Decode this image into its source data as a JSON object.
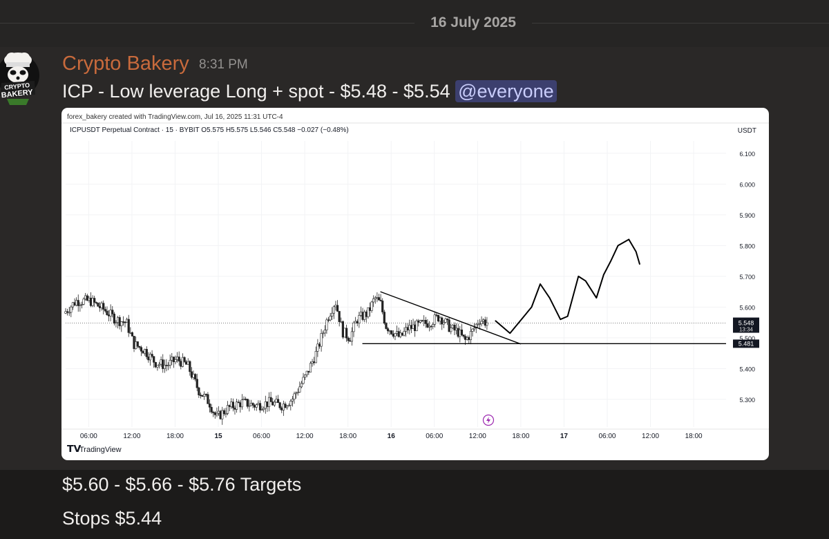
{
  "date_divider": "16 July 2025",
  "message": {
    "username": "Crypto Bakery",
    "timestamp": "8:31 PM",
    "text": "ICP - Low leverage Long + spot - $5.48 - $5.54",
    "mention": "@everyone",
    "avatar_text": [
      "CRYPTO",
      "BAKERY"
    ],
    "followups": [
      "$5.60 - $5.66 - $5.76 Targets",
      "Stops $5.44"
    ]
  },
  "chart": {
    "credit": "forex_bakery created with TradingView.com, Jul 16, 2025 11:31 UTC-4",
    "legend": "ICPUSDT Perpetual Contract · 15 · BYBIT  O5.575  H5.575  L5.546  C5.548  −0.027 (−0.48%)",
    "currency": "USDT",
    "watermark": "TradingView",
    "current_price": "5.548",
    "countdown": "13:34",
    "support_price": "5.481"
  },
  "chart_data": {
    "type": "candlestick",
    "symbol": "ICPUSDT Perpetual Contract",
    "interval": "15",
    "exchange": "BYBIT",
    "ohlc_last": {
      "open": 5.575,
      "high": 5.575,
      "low": 5.546,
      "close": 5.548,
      "change": -0.027,
      "change_pct": -0.48
    },
    "y_ticks": [
      "6.100",
      "6.000",
      "5.900",
      "5.800",
      "5.700",
      "5.600",
      "5.500",
      "5.400",
      "5.300"
    ],
    "ylim": [
      5.21,
      6.14
    ],
    "x_ticks": [
      {
        "label": "06:00",
        "h": 6
      },
      {
        "label": "12:00",
        "h": 12
      },
      {
        "label": "18:00",
        "h": 18
      },
      {
        "label": "15",
        "h": 24,
        "bold": true
      },
      {
        "label": "06:00",
        "h": 30
      },
      {
        "label": "12:00",
        "h": 36
      },
      {
        "label": "18:00",
        "h": 42
      },
      {
        "label": "16",
        "h": 48,
        "bold": true
      },
      {
        "label": "06:00",
        "h": 54
      },
      {
        "label": "12:00",
        "h": 60
      },
      {
        "label": "18:00",
        "h": 66
      },
      {
        "label": "17",
        "h": 72,
        "bold": true
      },
      {
        "label": "06:00",
        "h": 78
      },
      {
        "label": "12:00",
        "h": 84
      },
      {
        "label": "18:00",
        "h": 90
      }
    ],
    "xlim": [
      2.8,
      94.5
    ],
    "current_price": 5.548,
    "support_level": 5.481,
    "price_path": [
      [
        2.8,
        5.58
      ],
      [
        4.5,
        5.62
      ],
      [
        6.5,
        5.62
      ],
      [
        8.5,
        5.59
      ],
      [
        10,
        5.56
      ],
      [
        11.5,
        5.55
      ],
      [
        12.5,
        5.48
      ],
      [
        14,
        5.46
      ],
      [
        15.5,
        5.42
      ],
      [
        17,
        5.41
      ],
      [
        18.5,
        5.43
      ],
      [
        20,
        5.41
      ],
      [
        21.5,
        5.33
      ],
      [
        23,
        5.29
      ],
      [
        24,
        5.24
      ],
      [
        25.5,
        5.27
      ],
      [
        27.5,
        5.29
      ],
      [
        29.5,
        5.28
      ],
      [
        31.5,
        5.29
      ],
      [
        33,
        5.28
      ],
      [
        34.5,
        5.3
      ],
      [
        36.5,
        5.38
      ],
      [
        38,
        5.46
      ],
      [
        39.5,
        5.57
      ],
      [
        40.5,
        5.62
      ],
      [
        41.5,
        5.52
      ],
      [
        42.5,
        5.5
      ],
      [
        43.5,
        5.56
      ],
      [
        45,
        5.58
      ],
      [
        46,
        5.63
      ],
      [
        46.8,
        5.61
      ],
      [
        47.5,
        5.54
      ],
      [
        48.5,
        5.52
      ],
      [
        49.5,
        5.5
      ],
      [
        50.5,
        5.53
      ],
      [
        52,
        5.54
      ],
      [
        53.5,
        5.55
      ],
      [
        55,
        5.57
      ],
      [
        56.5,
        5.53
      ],
      [
        57.5,
        5.52
      ],
      [
        58.5,
        5.49
      ],
      [
        59.5,
        5.52
      ],
      [
        60.5,
        5.56
      ],
      [
        61.5,
        5.55
      ]
    ],
    "drawings": {
      "descending_trendline": [
        [
          46.5,
          5.65
        ],
        [
          66,
          5.48
        ]
      ],
      "support_line": [
        [
          44,
          5.481
        ],
        [
          94.5,
          5.481
        ]
      ],
      "projected_path": [
        [
          62.5,
          5.555
        ],
        [
          64.5,
          5.515
        ],
        [
          67.5,
          5.6
        ],
        [
          68.7,
          5.675
        ],
        [
          70,
          5.63
        ],
        [
          71.5,
          5.56
        ],
        [
          72.5,
          5.57
        ],
        [
          74,
          5.7
        ],
        [
          75,
          5.685
        ],
        [
          76.5,
          5.63
        ],
        [
          77.5,
          5.705
        ],
        [
          78.5,
          5.75
        ],
        [
          79.5,
          5.8
        ],
        [
          81,
          5.82
        ],
        [
          82,
          5.78
        ],
        [
          82.5,
          5.74
        ]
      ]
    }
  }
}
